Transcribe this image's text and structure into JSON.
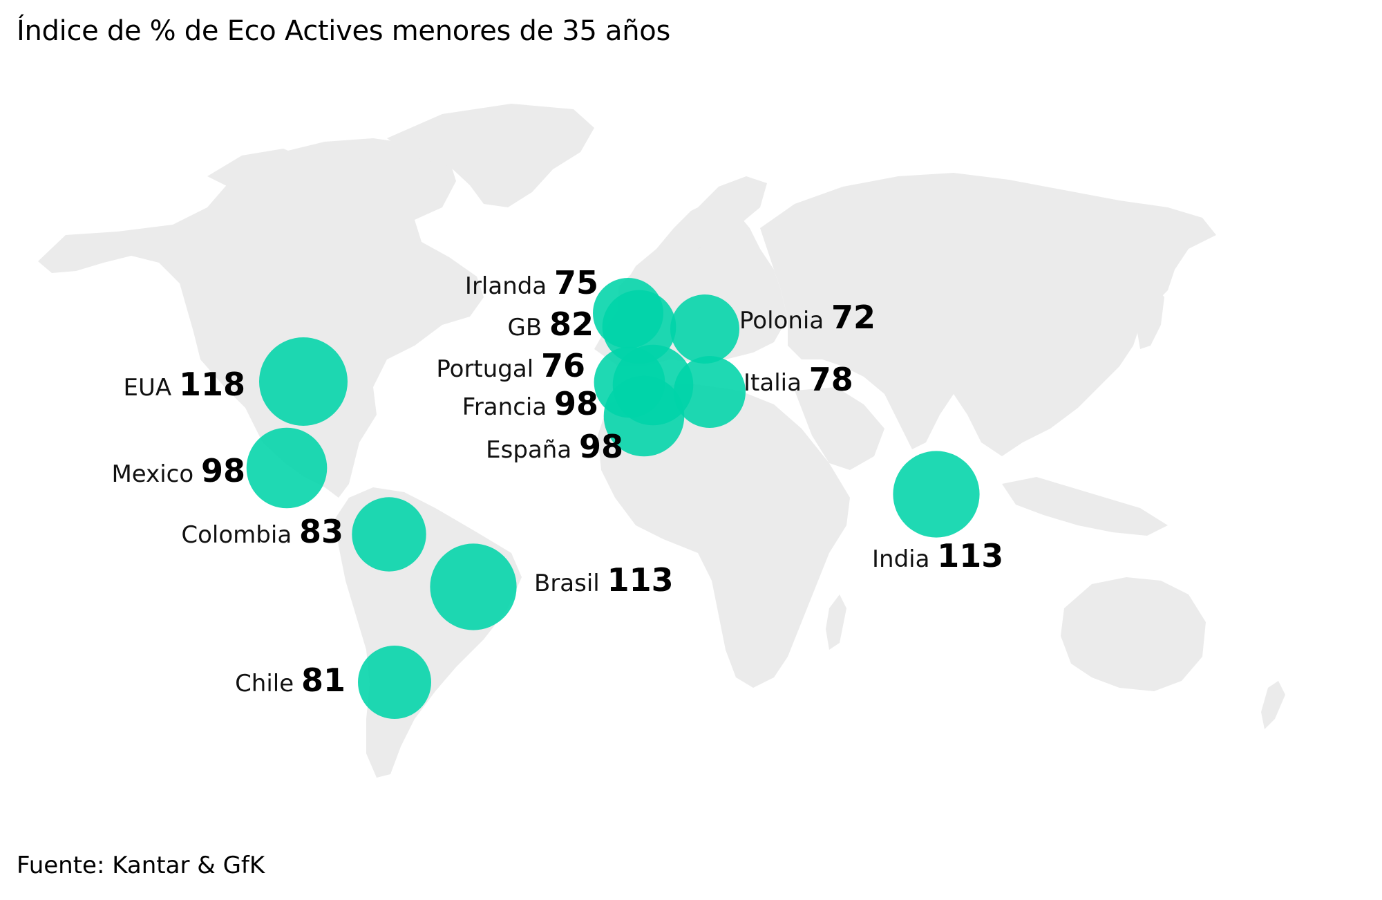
{
  "title": "Índice de % de Eco Actives menores de 35 años",
  "source": "Fuente: Kantar & GfK",
  "colors": {
    "bubble": "#00d4a8",
    "land": "#ebebeb",
    "text": "#000000"
  },
  "chart_data": {
    "type": "bubble-map",
    "points": [
      {
        "name": "EUA",
        "value": 118
      },
      {
        "name": "Mexico",
        "value": 98
      },
      {
        "name": "Colombia",
        "value": 83
      },
      {
        "name": "Brasil",
        "value": 113
      },
      {
        "name": "Chile",
        "value": 81
      },
      {
        "name": "Irlanda",
        "value": 75
      },
      {
        "name": "GB",
        "value": 82
      },
      {
        "name": "Portugal",
        "value": 76
      },
      {
        "name": "Francia",
        "value": 98
      },
      {
        "name": "España",
        "value": 98
      },
      {
        "name": "Polonia",
        "value": 72
      },
      {
        "name": "Italia",
        "value": 78
      },
      {
        "name": "India",
        "value": 113
      }
    ]
  }
}
